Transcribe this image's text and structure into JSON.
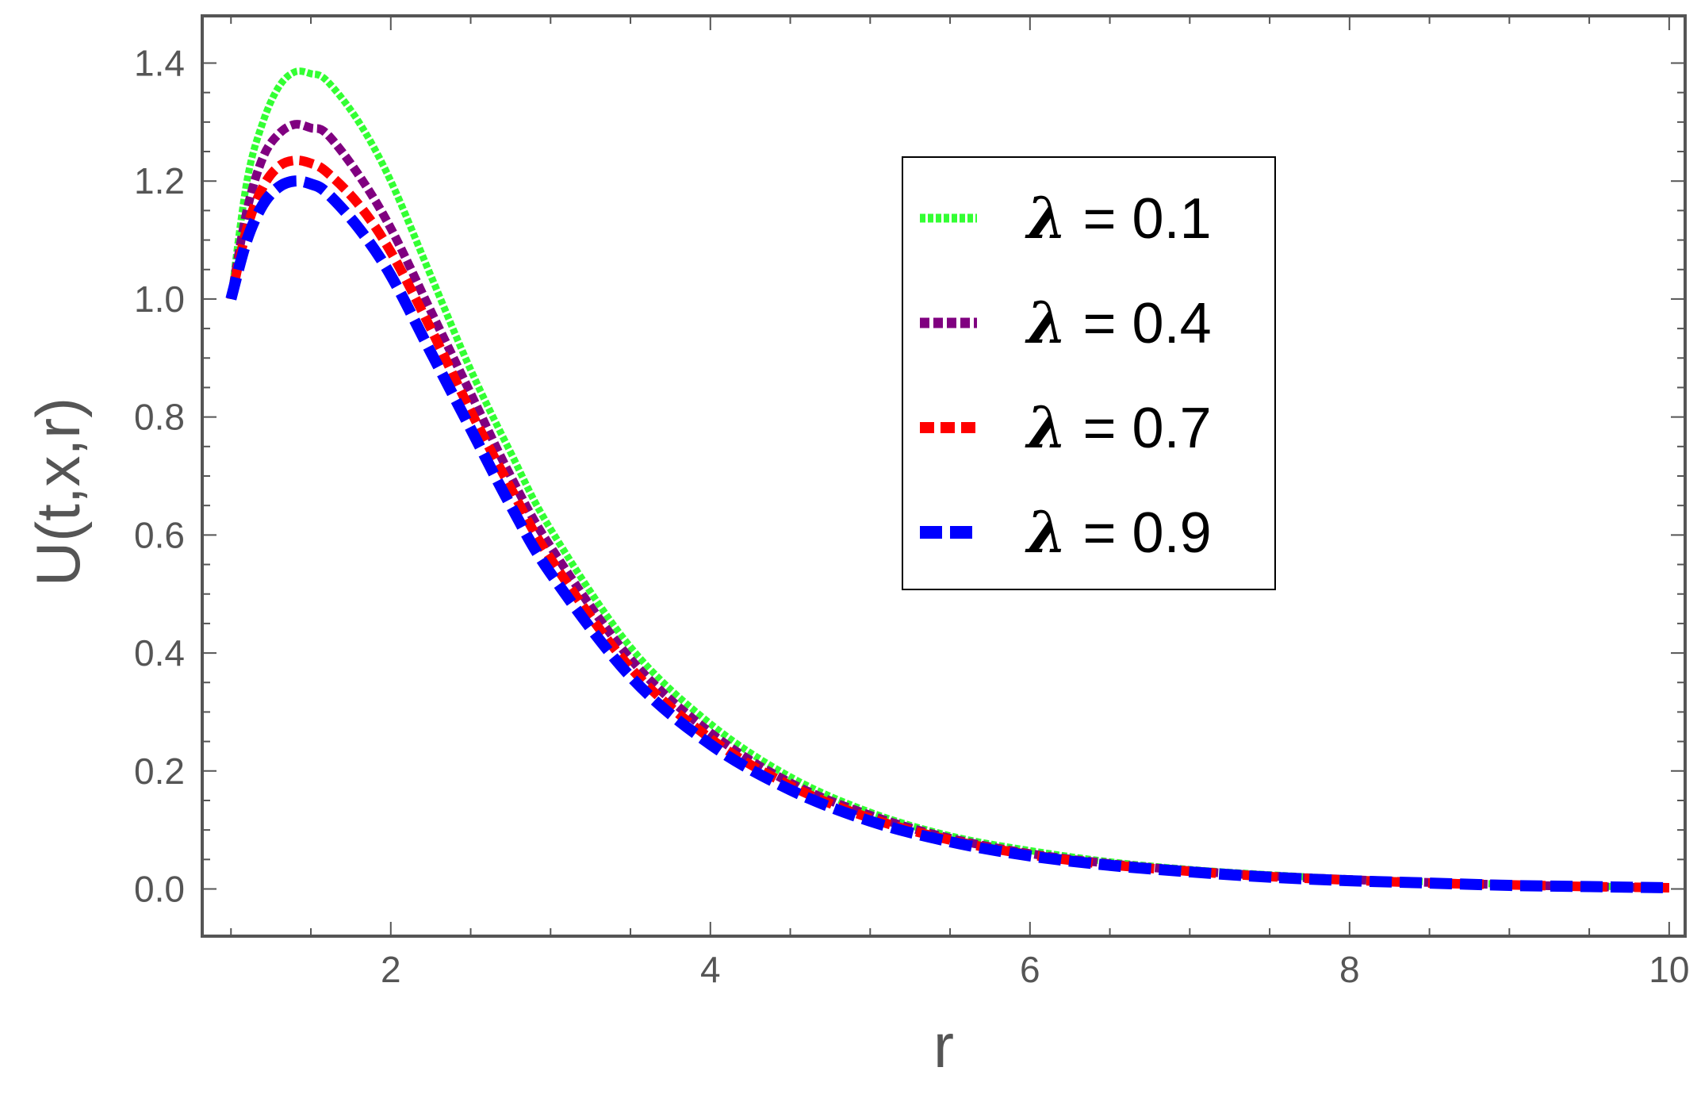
{
  "chart_data": {
    "type": "line",
    "title": "",
    "xlabel": "r",
    "ylabel": "U(t,x,r)",
    "xlim": [
      0.82,
      10.1
    ],
    "ylim": [
      -0.08,
      1.48
    ],
    "x_ticks": [
      2,
      4,
      6,
      8,
      10
    ],
    "x_tick_labels": [
      "2",
      "4",
      "6",
      "8",
      "10"
    ],
    "y_ticks": [
      0.0,
      0.2,
      0.4,
      0.6,
      0.8,
      1.0,
      1.2,
      1.4
    ],
    "y_tick_labels": [
      "0.0",
      "0.2",
      "0.4",
      "0.6",
      "0.8",
      "1.0",
      "1.2",
      "1.4"
    ],
    "grid": false,
    "legend_position": "upper-right",
    "x": [
      1.0,
      1.1,
      1.2,
      1.3,
      1.4,
      1.5,
      1.6,
      1.8,
      2.0,
      2.25,
      2.5,
      2.75,
      3.0,
      3.5,
      4.0,
      4.5,
      5.0,
      5.5,
      6.0,
      6.5,
      7.0,
      7.5,
      8.0,
      8.5,
      9.0,
      9.5,
      10.0
    ],
    "series": [
      {
        "name": "λ = 0.1",
        "color": "#33ff33",
        "dash": "dotted",
        "values": [
          1.0,
          1.2,
          1.3,
          1.36,
          1.385,
          1.382,
          1.37,
          1.3,
          1.2,
          1.04,
          0.88,
          0.74,
          0.61,
          0.41,
          0.28,
          0.19,
          0.13,
          0.09,
          0.065,
          0.046,
          0.033,
          0.024,
          0.017,
          0.012,
          0.008,
          0.005,
          0.002
        ]
      },
      {
        "name": "λ = 0.4",
        "color": "#800080",
        "dash": "short-dash",
        "values": [
          1.0,
          1.15,
          1.24,
          1.28,
          1.296,
          1.29,
          1.28,
          1.21,
          1.12,
          0.98,
          0.84,
          0.7,
          0.58,
          0.39,
          0.265,
          0.18,
          0.125,
          0.086,
          0.06,
          0.043,
          0.031,
          0.022,
          0.016,
          0.011,
          0.007,
          0.004,
          0.002
        ]
      },
      {
        "name": "λ = 0.7",
        "color": "#ff0000",
        "dash": "medium-dash",
        "values": [
          1.0,
          1.12,
          1.19,
          1.225,
          1.235,
          1.23,
          1.215,
          1.16,
          1.08,
          0.95,
          0.81,
          0.68,
          0.56,
          0.375,
          0.255,
          0.175,
          0.12,
          0.083,
          0.058,
          0.041,
          0.03,
          0.021,
          0.015,
          0.01,
          0.007,
          0.004,
          0.002
        ]
      },
      {
        "name": "λ = 0.9",
        "color": "#0000ff",
        "dash": "long-dash",
        "values": [
          1.0,
          1.1,
          1.16,
          1.19,
          1.2,
          1.195,
          1.18,
          1.12,
          1.04,
          0.91,
          0.78,
          0.65,
          0.535,
          0.36,
          0.245,
          0.168,
          0.115,
          0.08,
          0.056,
          0.04,
          0.029,
          0.02,
          0.014,
          0.01,
          0.006,
          0.004,
          0.002
        ]
      }
    ]
  }
}
